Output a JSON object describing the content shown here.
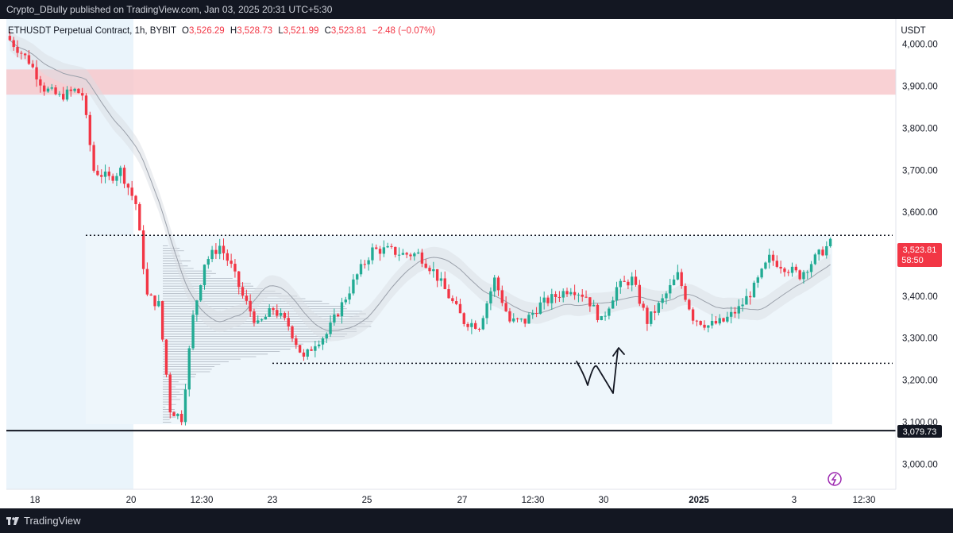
{
  "header": {
    "published": "Crypto_DBully published on TradingView.com, Jan 03, 2025 20:31 UTC+5:30"
  },
  "legend": {
    "symbol": "ETHUSDT Perpetual Contract, 1h, BYBIT",
    "o_label": "O",
    "o_value": "3,526.29",
    "h_label": "H",
    "h_value": "3,528.73",
    "l_label": "L",
    "l_value": "3,521.99",
    "c_label": "C",
    "c_value": "3,523.81",
    "change": "−2.48 (−0.07%)"
  },
  "footer": {
    "brand": "TradingView"
  },
  "colors": {
    "up": "#22ab94",
    "down": "#f23645",
    "bg": "#ffffff",
    "frame": "#131722",
    "zone": "#f7c5c9",
    "range_box": "#eef6fb",
    "early_shade": "#eaf4fb"
  },
  "chart_data": {
    "type": "candlestick",
    "currency_label": "USDT",
    "y_ticks": [
      "4,000.00",
      "3,900.00",
      "3,800.00",
      "3,700.00",
      "3,600.00",
      "3,400.00",
      "3,300.00",
      "3,200.00",
      "3,100.00",
      "3,000.00"
    ],
    "ylim": [
      2940,
      4060
    ],
    "x_ticks": [
      "18",
      "20",
      "12:30",
      "23",
      "25",
      "27",
      "12:30",
      "30",
      "2025",
      "3",
      "12:30"
    ],
    "last_price": "3,523.81",
    "countdown": "58:50",
    "level_label": "3,079.73",
    "levels": {
      "resistance_zone": [
        3880,
        3940
      ],
      "range_high": 3545,
      "range_low": 3240,
      "support_line": 3079.73
    },
    "price_path": [
      [
        0,
        4020
      ],
      [
        6,
        3960
      ],
      [
        10,
        3895
      ],
      [
        14,
        3875
      ],
      [
        18,
        3890
      ],
      [
        20,
        3880
      ],
      [
        23,
        3700
      ],
      [
        27,
        3680
      ],
      [
        30,
        3700
      ],
      [
        34,
        3620
      ],
      [
        37,
        3400
      ],
      [
        40,
        3380
      ],
      [
        43,
        3130
      ],
      [
        46,
        3110
      ],
      [
        49,
        3350
      ],
      [
        52,
        3480
      ],
      [
        56,
        3520
      ],
      [
        59,
        3470
      ],
      [
        62,
        3400
      ],
      [
        66,
        3330
      ],
      [
        70,
        3370
      ],
      [
        74,
        3330
      ],
      [
        78,
        3250
      ],
      [
        81,
        3290
      ],
      [
        84,
        3310
      ],
      [
        88,
        3380
      ],
      [
        92,
        3450
      ],
      [
        96,
        3510
      ],
      [
        100,
        3510
      ],
      [
        104,
        3500
      ],
      [
        108,
        3500
      ],
      [
        112,
        3460
      ],
      [
        116,
        3400
      ],
      [
        120,
        3340
      ],
      [
        124,
        3330
      ],
      [
        128,
        3440
      ],
      [
        132,
        3340
      ],
      [
        136,
        3340
      ],
      [
        140,
        3380
      ],
      [
        144,
        3400
      ],
      [
        148,
        3420
      ],
      [
        152,
        3400
      ],
      [
        156,
        3340
      ],
      [
        160,
        3420
      ],
      [
        164,
        3440
      ],
      [
        168,
        3340
      ],
      [
        172,
        3390
      ],
      [
        176,
        3450
      ],
      [
        180,
        3350
      ],
      [
        184,
        3330
      ],
      [
        188,
        3340
      ],
      [
        192,
        3370
      ],
      [
        196,
        3420
      ],
      [
        200,
        3490
      ],
      [
        204,
        3470
      ],
      [
        208,
        3450
      ],
      [
        212,
        3490
      ],
      [
        216,
        3526
      ]
    ]
  }
}
